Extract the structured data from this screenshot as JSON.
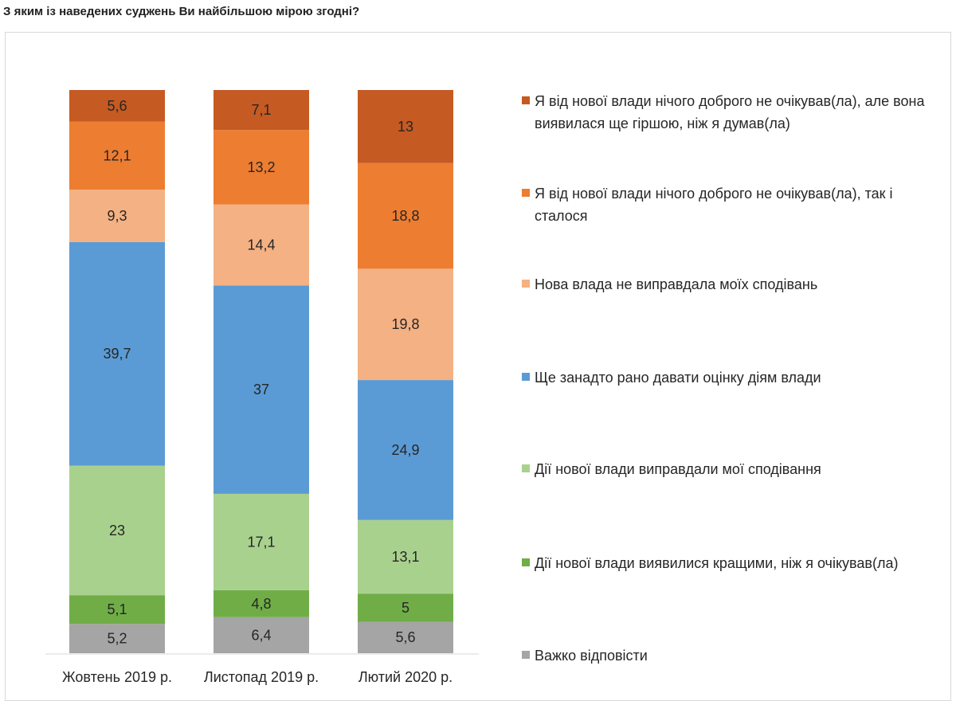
{
  "question": "З яким із наведених суджень Ви найбільшою мірою згодні?",
  "chart_data": {
    "type": "bar",
    "stacked": true,
    "normalized_percent": true,
    "categories": [
      "Жовтень 2019 р.",
      "Листопад 2019 р.",
      "Лютий 2020 р."
    ],
    "series": [
      {
        "name": "Важко відповісти",
        "color": "#a5a5a5",
        "values": [
          5.2,
          6.4,
          5.6
        ],
        "labels": [
          "5,2",
          "6,4",
          "5,6"
        ]
      },
      {
        "name": "Дії нової влади виявилися кращими, ніж я очікував(ла)",
        "color": "#70ad47",
        "values": [
          5.1,
          4.8,
          5
        ],
        "labels": [
          "5,1",
          "4,8",
          "5"
        ]
      },
      {
        "name": "Дії нової влади виправдали мої сподівання",
        "color": "#a9d18e",
        "values": [
          23,
          17.1,
          13.1
        ],
        "labels": [
          "23",
          "17,1",
          "13,1"
        ]
      },
      {
        "name": "Ще занадто рано давати оцінку діям влади",
        "color": "#5b9bd5",
        "values": [
          39.7,
          37,
          24.9
        ],
        "labels": [
          "39,7",
          "37",
          "24,9"
        ]
      },
      {
        "name": "Нова влада не виправдала моїх сподівань",
        "color": "#f4b183",
        "values": [
          9.3,
          14.4,
          19.8
        ],
        "labels": [
          "9,3",
          "14,4",
          "19,8"
        ]
      },
      {
        "name": "Я від нової влади нічого доброго не очікував(ла), так і сталося",
        "color": "#ed7d31",
        "values": [
          12.1,
          13.2,
          18.8
        ],
        "labels": [
          "12,1",
          "13,2",
          "18,8"
        ]
      },
      {
        "name": "Я від нової влади нічого доброго не очікував(ла), але вона виявилася ще гіршою, ніж я думав(ла)",
        "color": "#c55a22",
        "values": [
          5.6,
          7.1,
          13
        ],
        "labels": [
          "5,6",
          "7,1",
          "13"
        ]
      }
    ],
    "legend_position": "right",
    "grid": false
  },
  "legend": [
    {
      "label": "Я від нової влади нічого доброго не очікував(ла), але вона виявилася ще гіршою, ніж я думав(ла)",
      "color": "#c55a22"
    },
    {
      "label": "Я від нової влади нічого доброго не очікував(ла), так і сталося",
      "color": "#ed7d31"
    },
    {
      "label": "Нова влада не виправдала моїх сподівань",
      "color": "#f4b183"
    },
    {
      "label": "Ще занадто рано давати оцінку діям влади",
      "color": "#5b9bd5"
    },
    {
      "label": "Дії нової влади виправдали мої сподівання",
      "color": "#a9d18e"
    },
    {
      "label": "Дії нової влади виявилися кращими, ніж я очікував(ла)",
      "color": "#70ad47"
    },
    {
      "label": "Важко відповісти",
      "color": "#a5a5a5"
    }
  ]
}
